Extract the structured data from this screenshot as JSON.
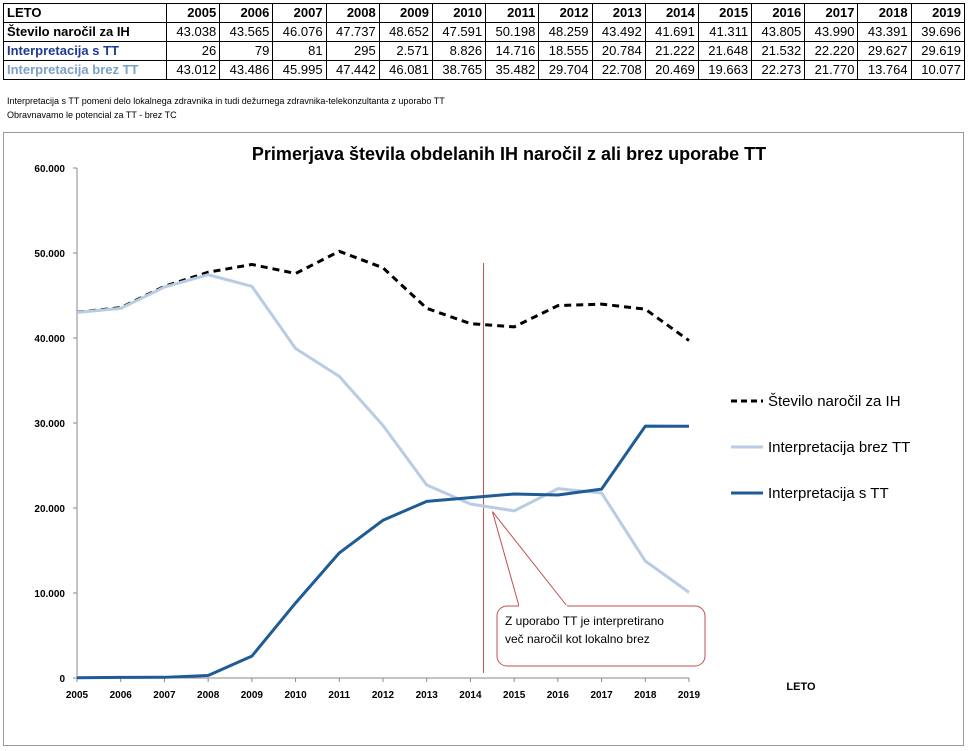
{
  "table": {
    "header_label": "LETO",
    "years": [
      "2005",
      "2006",
      "2007",
      "2008",
      "2009",
      "2010",
      "2011",
      "2012",
      "2013",
      "2014",
      "2015",
      "2016",
      "2017",
      "2018",
      "2019"
    ],
    "rows": [
      {
        "label": "Število naročil za IH",
        "values": [
          "43.038",
          "43.565",
          "46.076",
          "47.737",
          "48.652",
          "47.591",
          "50.198",
          "48.259",
          "43.492",
          "41.691",
          "41.311",
          "43.805",
          "43.990",
          "43.391",
          "39.696"
        ]
      },
      {
        "label": "Interpretacija s TT",
        "values": [
          "26",
          "79",
          "81",
          "295",
          "2.571",
          "8.826",
          "14.716",
          "18.555",
          "20.784",
          "21.222",
          "21.648",
          "21.532",
          "22.220",
          "29.627",
          "29.619"
        ]
      },
      {
        "label": "Interpretacija brez TT",
        "values": [
          "43.012",
          "43.486",
          "45.995",
          "47.442",
          "46.081",
          "38.765",
          "35.482",
          "29.704",
          "22.708",
          "20.469",
          "19.663",
          "22.273",
          "21.770",
          "13.764",
          "10.077"
        ]
      }
    ]
  },
  "notes": [
    "Interpretacija s TT pomeni delo lokalnega zdravnika in tudi dežurnega zdravnika-telekonzultanta z uporabo TT",
    "Obravnavamo le potencial za TT - brez TC"
  ],
  "chart_data": {
    "type": "line",
    "title": "Primerjava števila obdelanih IH naročil z ali brez uporabe TT",
    "xlabel": "LETO",
    "ylabel": "",
    "categories": [
      "2005",
      "2006",
      "2007",
      "2008",
      "2009",
      "2010",
      "2011",
      "2012",
      "2013",
      "2014",
      "2015",
      "2016",
      "2017",
      "2018",
      "2019"
    ],
    "ylim": [
      0,
      60000
    ],
    "y_tick_labels": [
      "0",
      "10.000",
      "20.000",
      "30.000",
      "40.000",
      "50.000",
      "60.000"
    ],
    "series": [
      {
        "name": "Število naročil za IH",
        "color": "#000000",
        "dash": true,
        "values": [
          43038,
          43565,
          46076,
          47737,
          48652,
          47591,
          50198,
          48259,
          43492,
          41691,
          41311,
          43805,
          43990,
          43391,
          39696
        ]
      },
      {
        "name": "Interpretacija brez TT",
        "color": "#b8cce4",
        "dash": false,
        "values": [
          43012,
          43486,
          45995,
          47442,
          46081,
          38765,
          35482,
          29704,
          22708,
          20469,
          19663,
          22273,
          21770,
          13764,
          10077
        ]
      },
      {
        "name": "Interpretacija s TT",
        "color": "#1f5b94",
        "dash": false,
        "values": [
          26,
          79,
          81,
          295,
          2571,
          8826,
          14716,
          18555,
          20784,
          21222,
          21648,
          21532,
          22220,
          29627,
          29619
        ]
      }
    ],
    "marker_line_x": 2014.3,
    "marker_line_color": "#c0504d",
    "annotation": "Z uporabo TT je interpretirano več naročil kot lokalno brez",
    "annotation_lines": [
      "Z uporabo TT je interpretirano",
      "več naročil kot lokalno brez"
    ],
    "legend_position": "right",
    "grid": false
  }
}
